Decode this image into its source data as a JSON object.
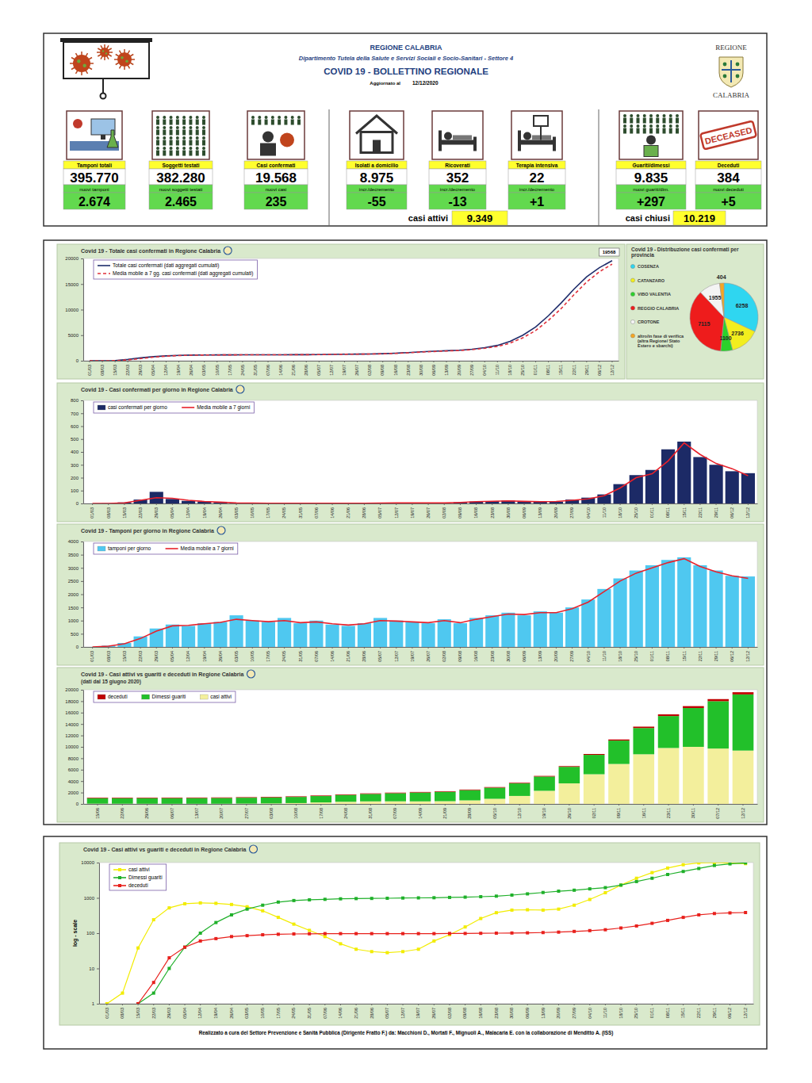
{
  "header": {
    "region": "REGIONE CALABRIA",
    "department": "Dipartimento Tutela della Salute e Servizi Sociali e Socio-Sanitari - Settore 4",
    "title": "COVID 19 - BOLLETTINO REGIONALE",
    "updated_label": "Aggiornato al",
    "updated_date": "12/12/2020",
    "logo_top": "REGIONE",
    "logo_bottom": "CALABRIA"
  },
  "kpis": [
    {
      "label": "Tamponi totali",
      "value": "395.770",
      "delta_label": "nuovi tamponi",
      "delta": "2.674"
    },
    {
      "label": "Soggetti testati",
      "value": "382.280",
      "delta_label": "nuovi soggetti testati",
      "delta": "2.465"
    },
    {
      "label": "Casi confermati",
      "value": "19.568",
      "delta_label": "nuovi casi",
      "delta": "235"
    },
    {
      "label": "Isolati a domicilio",
      "value": "8.975",
      "delta_label": "incr./decremento",
      "delta": "-55"
    },
    {
      "label": "Ricoverati",
      "value": "352",
      "delta_label": "incr./decremento",
      "delta": "-13"
    },
    {
      "label": "Terapia intensiva",
      "value": "22",
      "delta_label": "incr./decremento",
      "delta": "+1"
    },
    {
      "label": "Guariti/dimessi",
      "value": "9.835",
      "delta_label": "nuovi guariti/dim.",
      "delta": "+297"
    },
    {
      "label": "Deceduti",
      "value": "384",
      "delta_label": "nuovi deceduti",
      "delta": "+5",
      "icon_text": "DECEASED"
    }
  ],
  "totals": [
    {
      "label": "casi attivi",
      "value": "9.349"
    },
    {
      "label": "casi chiusi",
      "value": "10.219"
    }
  ],
  "chart_data": [
    {
      "type": "line",
      "title": "Covid 19 - Totale casi confermati in Regione Calabria",
      "annotation": "19568",
      "categories": [
        "01/03",
        "08/03",
        "15/03",
        "22/03",
        "29/03",
        "05/04",
        "12/04",
        "19/04",
        "26/04",
        "03/05",
        "10/05",
        "17/05",
        "24/05",
        "31/05",
        "07/06",
        "14/06",
        "21/06",
        "28/06",
        "05/07",
        "12/07",
        "19/07",
        "26/07",
        "02/08",
        "09/08",
        "16/08",
        "23/08",
        "30/08",
        "06/09",
        "13/09",
        "20/09",
        "27/09",
        "04/10",
        "11/10",
        "18/10",
        "25/10",
        "01/11",
        "08/11",
        "15/11",
        "22/11",
        "29/11",
        "06/12",
        "12/12"
      ],
      "series": [
        {
          "name": "Totale casi confermati (dati aggregati cumulati)",
          "color": "#1f2d6b",
          "line_style": "solid",
          "values": [
            0,
            2,
            40,
            250,
            560,
            800,
            950,
            1050,
            1100,
            1120,
            1140,
            1150,
            1155,
            1160,
            1165,
            1170,
            1180,
            1190,
            1210,
            1250,
            1270,
            1300,
            1320,
            1380,
            1480,
            1600,
            1750,
            1850,
            1950,
            2050,
            2250,
            2550,
            3000,
            3800,
            5000,
            6600,
            8800,
            11300,
            14000,
            16400,
            18200,
            19568
          ]
        },
        {
          "name": "Media mobile a 7 gg. casi confermati (dati aggregati cumulati)",
          "color": "#e0303a",
          "line_style": "dashed",
          "values": [
            0,
            1,
            20,
            150,
            420,
            700,
            900,
            1010,
            1080,
            1110,
            1130,
            1145,
            1152,
            1158,
            1162,
            1168,
            1175,
            1185,
            1200,
            1235,
            1260,
            1290,
            1310,
            1360,
            1440,
            1550,
            1690,
            1810,
            1910,
            2000,
            2170,
            2430,
            2800,
            3450,
            4500,
            5900,
            7900,
            10200,
            12900,
            15400,
            17400,
            18900
          ]
        }
      ],
      "ylim": [
        0,
        20000
      ],
      "yticks": [
        0,
        5000,
        10000,
        15000,
        20000
      ],
      "legend": "top-left"
    },
    {
      "type": "pie",
      "title": "Covid 19 - Distribuzione casi confermati per provincia",
      "categories": [
        "COSENZA",
        "CATANZARO",
        "VIBO VALENTIA",
        "REGGIO CALABRIA",
        "CROTONE",
        "altro/in fase di verifica (altra Regione/ Stato Estero e sbarchi)"
      ],
      "values": [
        6258,
        2736,
        1100,
        7115,
        1955,
        404
      ],
      "colors": [
        "#2fd6f0",
        "#f2ee1e",
        "#2bd12b",
        "#ee1c1c",
        "#f4f4f4",
        "#f5a623"
      ],
      "data_labels": true,
      "legend": "left"
    },
    {
      "type": "bar",
      "title": "Covid 19 - Casi confermati per giorno in Regione Calabria",
      "categories": [
        "01/03",
        "08/03",
        "15/03",
        "22/03",
        "29/03",
        "05/04",
        "12/04",
        "19/04",
        "26/04",
        "03/05",
        "10/05",
        "17/05",
        "24/05",
        "31/05",
        "07/06",
        "14/06",
        "21/06",
        "28/06",
        "05/07",
        "12/07",
        "19/07",
        "26/07",
        "02/08",
        "09/08",
        "16/08",
        "23/08",
        "30/08",
        "06/09",
        "13/09",
        "20/09",
        "27/09",
        "04/10",
        "11/10",
        "18/10",
        "25/10",
        "01/11",
        "08/11",
        "15/11",
        "22/11",
        "29/11",
        "06/12",
        "12/12"
      ],
      "series": [
        {
          "name": "casi confermati per giorno",
          "type": "bar",
          "color": "#1c2a66",
          "values": [
            0,
            1,
            8,
            30,
            90,
            35,
            20,
            15,
            8,
            4,
            3,
            2,
            1,
            1,
            1,
            1,
            2,
            2,
            3,
            6,
            3,
            5,
            3,
            9,
            15,
            18,
            22,
            15,
            14,
            14,
            30,
            45,
            70,
            150,
            220,
            260,
            420,
            480,
            360,
            300,
            250,
            235
          ]
        },
        {
          "name": "Media mobile a 7 giorni",
          "type": "line",
          "color": "#e8212b",
          "values": [
            0,
            0,
            5,
            25,
            45,
            40,
            25,
            15,
            10,
            5,
            3,
            2,
            1,
            1,
            1,
            1,
            1,
            2,
            3,
            5,
            4,
            4,
            4,
            8,
            14,
            17,
            20,
            16,
            14,
            15,
            25,
            35,
            60,
            120,
            200,
            230,
            330,
            470,
            380,
            310,
            270,
            215
          ]
        }
      ],
      "ylim": [
        0,
        800
      ],
      "yticks": [
        0,
        100,
        200,
        300,
        400,
        500,
        600,
        700,
        800
      ],
      "legend": "top-left"
    },
    {
      "type": "bar",
      "title": "Covid 19 - Tamponi per giorno in Regione Calabria",
      "categories": [
        "01/03",
        "08/03",
        "15/03",
        "22/03",
        "29/03",
        "05/04",
        "12/04",
        "19/04",
        "26/04",
        "03/05",
        "10/05",
        "17/05",
        "24/05",
        "31/05",
        "07/06",
        "14/06",
        "21/06",
        "28/06",
        "05/07",
        "12/07",
        "19/07",
        "26/07",
        "02/08",
        "09/08",
        "16/08",
        "23/08",
        "30/08",
        "06/09",
        "13/09",
        "20/09",
        "27/09",
        "04/10",
        "11/10",
        "18/10",
        "25/10",
        "01/11",
        "08/11",
        "15/11",
        "22/11",
        "29/11",
        "06/12",
        "12/12"
      ],
      "series": [
        {
          "name": "tamponi per giorno",
          "type": "bar",
          "color": "#4fc8f0",
          "values": [
            0,
            50,
            150,
            400,
            700,
            850,
            800,
            900,
            950,
            1200,
            1000,
            950,
            1100,
            900,
            1000,
            850,
            800,
            900,
            1100,
            1000,
            950,
            900,
            1050,
            900,
            1100,
            1200,
            1300,
            1200,
            1350,
            1300,
            1500,
            1800,
            2200,
            2600,
            2900,
            3100,
            3300,
            3400,
            3100,
            2900,
            2700,
            2674
          ]
        },
        {
          "name": "Media mobile a 7 giorni",
          "type": "line",
          "color": "#e8212b",
          "values": [
            0,
            30,
            120,
            320,
            600,
            800,
            820,
            880,
            930,
            1050,
            1000,
            960,
            1000,
            920,
            950,
            880,
            830,
            880,
            1000,
            980,
            950,
            920,
            1000,
            920,
            1050,
            1150,
            1250,
            1230,
            1300,
            1300,
            1450,
            1700,
            2100,
            2500,
            2800,
            3000,
            3200,
            3350,
            3050,
            2850,
            2700,
            2600
          ]
        }
      ],
      "ylim": [
        0,
        4000
      ],
      "yticks": [
        0,
        500,
        1000,
        1500,
        2000,
        2500,
        3000,
        3500,
        4000
      ],
      "legend": "top-left"
    },
    {
      "type": "bar",
      "stacked": true,
      "title": "Covid 19 - Casi attivi vs guariti e deceduti in Regione Calabria",
      "subtitle": "(dati dal 15 giugno 2020)",
      "categories": [
        "15/06",
        "22/06",
        "29/06",
        "06/07",
        "13/07",
        "20/07",
        "27/07",
        "03/08",
        "10/08",
        "17/08",
        "24/08",
        "31/08",
        "07/09",
        "14/09",
        "21/09",
        "28/09",
        "05/10",
        "12/10",
        "19/10",
        "26/10",
        "02/11",
        "09/11",
        "16/11",
        "23/11",
        "30/11",
        "07/12",
        "12/12"
      ],
      "series": [
        {
          "name": "deceduti",
          "color": "#c00000",
          "values": [
            97,
            97,
            97,
            97,
            97,
            97,
            97,
            98,
            98,
            99,
            99,
            100,
            100,
            101,
            101,
            102,
            104,
            107,
            112,
            125,
            150,
            190,
            240,
            290,
            335,
            365,
            384
          ]
        },
        {
          "name": "Dimessi guariti",
          "color": "#22c02a",
          "values": [
            960,
            965,
            975,
            990,
            1000,
            1010,
            1030,
            1050,
            1080,
            1120,
            1200,
            1300,
            1420,
            1550,
            1650,
            1800,
            1950,
            2200,
            2500,
            2900,
            3400,
            4100,
            4600,
            5600,
            6800,
            8300,
            9835
          ]
        },
        {
          "name": "casi attivi",
          "color": "#f3ef9c",
          "values": [
            50,
            40,
            35,
            30,
            30,
            35,
            60,
            90,
            150,
            260,
            380,
            450,
            460,
            450,
            480,
            620,
            900,
            1400,
            2300,
            3600,
            5200,
            7000,
            8700,
            9800,
            10000,
            9700,
            9349
          ]
        }
      ],
      "ylim": [
        0,
        20000
      ],
      "yticks": [
        0,
        2000,
        4000,
        6000,
        8000,
        10000,
        12000,
        14000,
        16000,
        18000,
        20000
      ],
      "legend": "top-left"
    },
    {
      "type": "line",
      "log": "y",
      "title": "Covid 19 - Casi attivi vs guariti e deceduti in Regione Calabria",
      "y_label": "log - scale",
      "categories": [
        "01/03",
        "08/03",
        "15/03",
        "22/03",
        "29/03",
        "05/04",
        "12/04",
        "19/04",
        "26/04",
        "03/05",
        "10/05",
        "17/05",
        "24/05",
        "31/05",
        "07/06",
        "14/06",
        "21/06",
        "28/06",
        "05/07",
        "12/07",
        "19/07",
        "26/07",
        "02/08",
        "09/08",
        "16/08",
        "23/08",
        "30/08",
        "06/09",
        "13/09",
        "20/09",
        "27/09",
        "04/10",
        "11/10",
        "18/10",
        "25/10",
        "01/11",
        "08/11",
        "15/11",
        "22/11",
        "29/11",
        "06/12",
        "12/12"
      ],
      "series": [
        {
          "name": "casi attivi",
          "color": "#f2ec00",
          "marker": "square",
          "values": [
            1,
            2,
            38,
            240,
            520,
            680,
            720,
            700,
            650,
            560,
            430,
            280,
            180,
            120,
            80,
            50,
            35,
            30,
            28,
            30,
            35,
            60,
            90,
            150,
            260,
            380,
            450,
            460,
            450,
            480,
            620,
            900,
            1400,
            2300,
            3600,
            5200,
            7000,
            8700,
            9800,
            10000,
            9700,
            9349
          ]
        },
        {
          "name": "Dimessi guariti",
          "color": "#1fb02a",
          "marker": "square",
          "values": [
            null,
            null,
            1,
            2,
            10,
            40,
            100,
            200,
            330,
            480,
            620,
            760,
            840,
            880,
            910,
            940,
            955,
            965,
            975,
            990,
            1000,
            1010,
            1030,
            1050,
            1080,
            1120,
            1200,
            1300,
            1420,
            1550,
            1650,
            1800,
            1950,
            2300,
            2900,
            3600,
            4600,
            5600,
            6800,
            8300,
            9200,
            9835
          ]
        },
        {
          "name": "deceduti",
          "color": "#e8201c",
          "marker": "square",
          "values": [
            null,
            null,
            1,
            4,
            20,
            40,
            60,
            70,
            80,
            85,
            90,
            93,
            95,
            96,
            97,
            97,
            97,
            97,
            97,
            97,
            97,
            97,
            98,
            98,
            99,
            100,
            101,
            102,
            104,
            107,
            112,
            118,
            125,
            140,
            160,
            190,
            230,
            280,
            330,
            360,
            375,
            384
          ]
        }
      ],
      "ylim": [
        1,
        10000
      ],
      "yticks": [
        1,
        10,
        100,
        1000,
        10000
      ],
      "legend": "top-left"
    }
  ],
  "footer": "Realizzato a cura del Settore Prevenzione e Sanità Pubblica (Dirigente Fratto F.) da: Macchioni D., Mortati F., Mignuoli A., Malacaria E. con la collaborazione di Menditto A. (ISS)"
}
